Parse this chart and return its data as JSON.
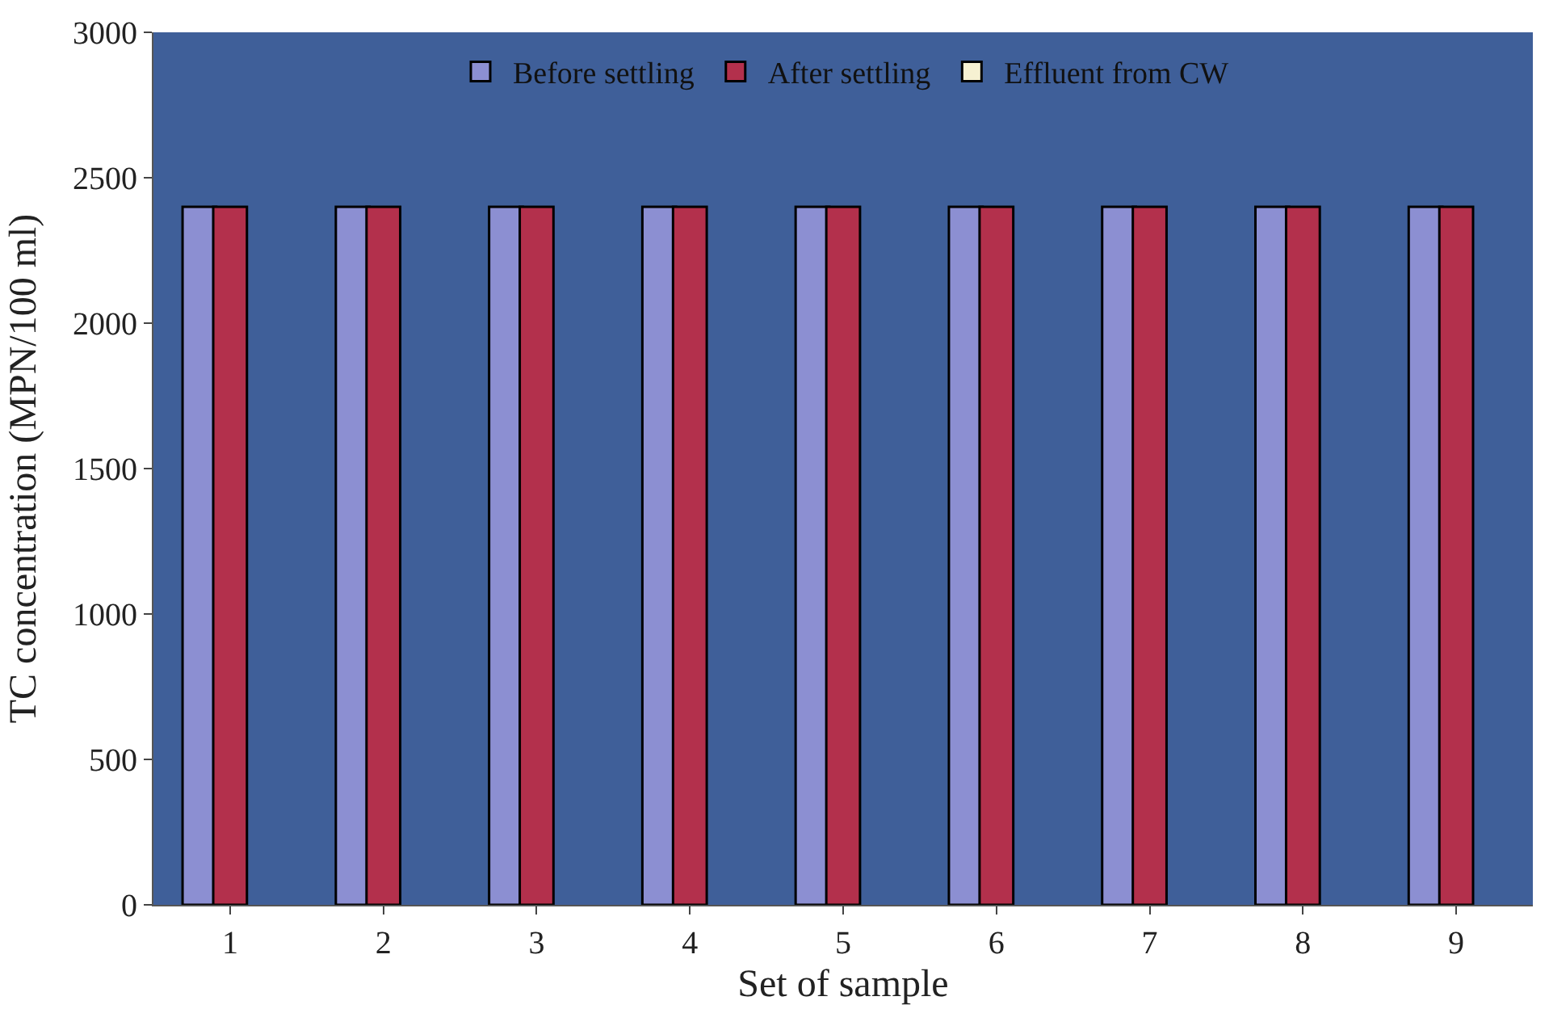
{
  "chart_data": {
    "type": "bar",
    "xlabel": "Set of sample",
    "ylabel": "TC concentration (MPN/100 ml)",
    "categories": [
      "1",
      "2",
      "3",
      "4",
      "5",
      "6",
      "7",
      "8",
      "9"
    ],
    "series": [
      {
        "name": "Before settling",
        "color": "#8c8fd2",
        "values": [
          2400,
          2400,
          2400,
          2400,
          2400,
          2400,
          2400,
          2400,
          2400
        ]
      },
      {
        "name": "After settling",
        "color": "#b3304c",
        "values": [
          2400,
          2400,
          2400,
          2400,
          2400,
          2400,
          2400,
          2400,
          2400
        ]
      },
      {
        "name": "Effluent from CW",
        "color": "#f6f1d2",
        "values": [
          null,
          null,
          null,
          null,
          null,
          null,
          null,
          null,
          null
        ]
      }
    ],
    "ylim": [
      0,
      3000
    ],
    "yticks": [
      0,
      500,
      1000,
      1500,
      2000,
      2500,
      3000
    ],
    "grid": false,
    "legend": "top"
  }
}
